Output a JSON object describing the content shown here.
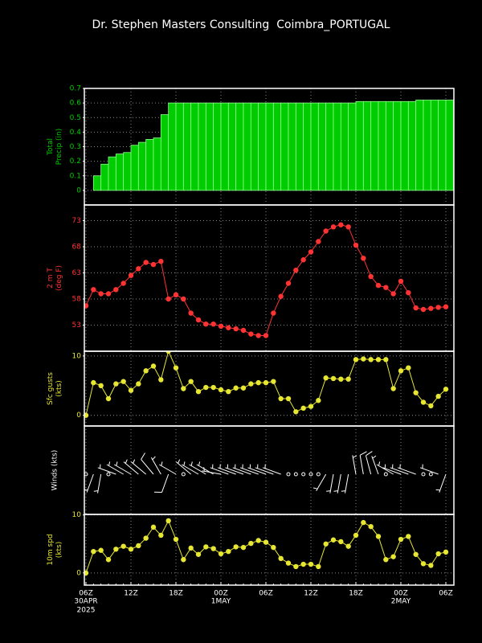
{
  "title": "Dr. Stephen Masters Consulting  Coimbra_PORTUGAL",
  "time_axis": {
    "categories": [
      "06Z",
      null,
      null,
      null,
      null,
      null,
      "12Z",
      null,
      null,
      null,
      null,
      null,
      "18Z",
      null,
      null,
      null,
      null,
      null,
      "00Z",
      null,
      null,
      null,
      null,
      null,
      "06Z",
      null,
      null,
      null,
      null,
      null,
      "12Z",
      null,
      null,
      null,
      null,
      null,
      "18Z",
      null,
      null,
      null,
      null,
      null,
      "00Z",
      null,
      null,
      null,
      null,
      null,
      "06Z"
    ],
    "dates": [
      "30APR",
      null,
      null,
      null,
      null,
      null,
      null,
      null,
      null,
      null,
      null,
      null,
      null,
      null,
      null,
      null,
      null,
      null,
      "1MAY",
      null,
      null,
      null,
      null,
      null,
      null,
      null,
      null,
      null,
      null,
      null,
      null,
      null,
      null,
      null,
      null,
      null,
      null,
      null,
      null,
      null,
      null,
      null,
      "2MAY",
      null,
      null,
      null,
      null,
      null,
      null
    ],
    "year": "2025"
  },
  "chart_data": [
    {
      "type": "bar",
      "ylabel": [
        "Total",
        "Precip (in)"
      ],
      "color": "#00cc00",
      "ylim": [
        -0.1,
        0.7
      ],
      "yticks": [
        {
          "value": 0,
          "label": "0"
        },
        0.1,
        0.2,
        0.3,
        0.4,
        0.5,
        0.6,
        0.7
      ],
      "grid": true,
      "values": [
        0,
        0.1,
        0.18,
        0.23,
        0.25,
        0.26,
        0.31,
        0.33,
        0.35,
        0.36,
        0.52,
        0.6,
        0.6,
        0.6,
        0.6,
        0.6,
        0.6,
        0.6,
        0.6,
        0.6,
        0.6,
        0.6,
        0.6,
        0.6,
        0.6,
        0.6,
        0.6,
        0.6,
        0.6,
        0.6,
        0.6,
        0.6,
        0.6,
        0.6,
        0.6,
        0.6,
        0.61,
        0.61,
        0.61,
        0.61,
        0.61,
        0.61,
        0.61,
        0.61,
        0.62,
        0.62,
        0.62,
        0.62,
        0.62
      ]
    },
    {
      "type": "line",
      "ylabel": [
        "2 m T",
        "(deg F)"
      ],
      "color": "#ff3333",
      "ylim": [
        48,
        76
      ],
      "yticks": [
        53,
        58,
        63,
        68,
        73
      ],
      "grid": true,
      "values": [
        56.7,
        59.8,
        59,
        59,
        59.8,
        61,
        62.5,
        63.8,
        65,
        64.6,
        65.2,
        58,
        58.8,
        58,
        55.3,
        54,
        53.2,
        53.2,
        52.8,
        52.5,
        52.3,
        52,
        51.3,
        51,
        51,
        55.3,
        58.5,
        61,
        63.5,
        65.5,
        67,
        69,
        71,
        71.8,
        72.2,
        71.8,
        68.3,
        65.8,
        62.3,
        60.6,
        60.2,
        59,
        61.4,
        59.2,
        56.3,
        56,
        56.2,
        56.4,
        56.5
      ]
    },
    {
      "type": "line",
      "ylabel": [
        "Sfc gusts",
        "(kts)"
      ],
      "color": "#e6e633",
      "ylim": [
        -1.8,
        10.8
      ],
      "yticks": [
        0,
        10
      ],
      "grid": true,
      "values": [
        0,
        5.5,
        5,
        2.8,
        5.3,
        5.7,
        4.2,
        5.3,
        7.5,
        8.3,
        6,
        10.8,
        8,
        4.5,
        5.7,
        4,
        4.7,
        4.7,
        4.3,
        4,
        4.6,
        4.6,
        5.3,
        5.5,
        5.5,
        5.7,
        2.8,
        2.8,
        0.6,
        1.2,
        1.5,
        2.5,
        6.3,
        6.2,
        6.1,
        6.1,
        9.4,
        9.5,
        9.4,
        9.4,
        9.4,
        4.5,
        7.5,
        8,
        3.8,
        2.2,
        1.6,
        3.2,
        4.4
      ]
    },
    {
      "type": "barbs",
      "ylabel": [
        "Winds (kts)"
      ],
      "color": "#ffffff",
      "values": [
        350,
        200,
        190,
        300,
        290,
        300,
        300,
        310,
        310,
        320,
        330,
        200,
        300,
        310,
        310,
        300,
        300,
        300,
        280,
        290,
        290,
        290,
        290,
        290,
        290,
        290,
        290,
        240,
        220,
        220,
        210,
        210,
        210,
        190,
        190,
        190,
        350,
        350,
        345,
        340,
        350,
        300,
        290,
        290,
        290,
        300,
        300,
        290,
        200
      ]
    },
    {
      "type": "line",
      "ylabel": [
        "10m spd",
        "(kts)"
      ],
      "color": "#e6e633",
      "ylim": [
        -2.1,
        10.1
      ],
      "yticks": [
        0,
        10
      ],
      "grid": true,
      "values": [
        0,
        3.7,
        3.9,
        2.3,
        4.1,
        4.6,
        4.1,
        4.7,
        6,
        7.9,
        6.5,
        9,
        5.8,
        2.3,
        4.3,
        3.2,
        4.5,
        4.2,
        3.3,
        3.7,
        4.5,
        4.4,
        5.1,
        5.6,
        5.3,
        4.4,
        2.5,
        1.7,
        1.1,
        1.5,
        1.5,
        1.1,
        5,
        5.7,
        5.4,
        4.6,
        6.5,
        8.7,
        8,
        6.3,
        2.3,
        2.8,
        5.8,
        6.3,
        3.2,
        1.6,
        1.3,
        3.3,
        3.6
      ]
    }
  ]
}
